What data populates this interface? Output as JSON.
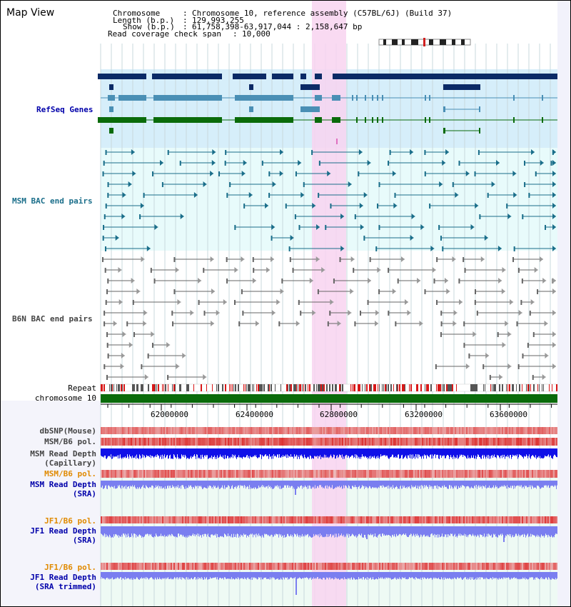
{
  "header": {
    "view_title": "Map View",
    "chromosome_key": "Chromosome",
    "chromosome_value": "Chromosome 10, reference assembly (C57BL/6J) (Build 37)",
    "length_key": "Length (b.p.)",
    "length_value": "129,993,255",
    "show_key": "Show (b.p.)",
    "show_value": "61,758,398-63,917,044 : 2,158,647 bp",
    "coverage_key": "Read coverage check span",
    "coverage_value": "10,000"
  },
  "tracks": {
    "refseq": "RefSeq Genes",
    "msm_bac": "MSM BAC end pairs",
    "b6n_bac": "B6N BAC end pairs",
    "repeat": "Repeat",
    "chromosome": "chromosome 10",
    "dbsnp": "dbSNP(Mouse)",
    "msm_b6_pol": "MSM/B6 pol.",
    "msm_read_depth_cap_1": "MSM Read Depth",
    "msm_read_depth_cap_2": "(Capillary)",
    "msm_b6_pol_sra": "MSM/B6 pol.",
    "msm_read_depth_sra_1": "MSM Read Depth",
    "msm_read_depth_sra_2": "(SRA)",
    "jf1_b6_pol": "JF1/B6 pol.",
    "jf1_read_depth_1": "JF1 Read Depth",
    "jf1_read_depth_2": "(SRA)",
    "jf1_b6_pol_trim": "JF1/B6 pol.",
    "jf1_read_depth_trim_1": "JF1 Read Depth",
    "jf1_read_depth_trim_2": "(SRA trimmed)"
  },
  "axis": {
    "ticks": [
      "62000000",
      "62400000",
      "62800000",
      "63200000",
      "63600000"
    ]
  },
  "colors": {
    "highlight": "#f8d4f0",
    "refseq_bg": "#d6eefa",
    "bac_bg": "#e8fbfb",
    "gene_navy": "#0b2a66",
    "gene_teal": "#4a8fb5",
    "gene_green": "#0a6b0a",
    "bac_line": "#1a6e8a",
    "b6n_line": "#666666",
    "depth_dark": "#1010e8",
    "depth_light": "#7a7ef0",
    "label_blue": "#0000aa",
    "label_teal": "#1a6e8a",
    "label_orange": "#e08a00",
    "label_gray": "#444444"
  }
}
